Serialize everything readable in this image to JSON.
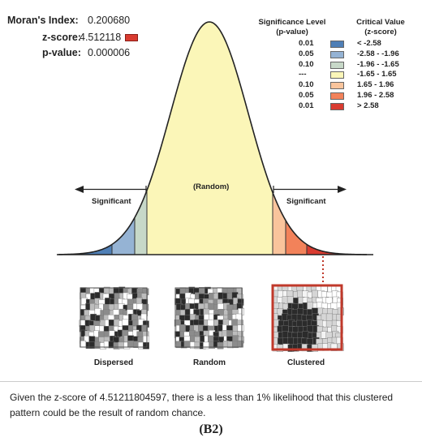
{
  "stats": {
    "morans_label": "Moran's Index:",
    "morans_value": "0.200680",
    "z_label": "z-score:",
    "z_value": "4.512118",
    "p_label": "p-value:",
    "p_value": "0.000006"
  },
  "legend": {
    "sig_header_1": "Significance Level",
    "sig_header_2": "(p-value)",
    "crit_header_1": "Critical Value",
    "crit_header_2": "(z-score)",
    "rows": [
      {
        "p": "0.01",
        "z": "< -2.58",
        "color": "#4f7fb6"
      },
      {
        "p": "0.05",
        "z": "-2.58 - -1.96",
        "color": "#95b3d4"
      },
      {
        "p": "0.10",
        "z": "-1.96 - -1.65",
        "color": "#c7d8c8"
      },
      {
        "p": "---",
        "z": "-1.65 - 1.65",
        "color": "#fbf6b8"
      },
      {
        "p": "0.10",
        "z": "1.65 - 1.96",
        "color": "#f9c49c"
      },
      {
        "p": "0.05",
        "z": "1.96 - 2.58",
        "color": "#f2825a"
      },
      {
        "p": "0.01",
        "z": "> 2.58",
        "color": "#d93b30"
      }
    ]
  },
  "curve": {
    "random_label": "(Random)",
    "significant_left": "Significant",
    "significant_right": "Significant"
  },
  "panels": {
    "dispersed": "Dispersed",
    "random": "Random",
    "clustered": "Clustered"
  },
  "caption": "Given the z-score of 4.51211804597, there is a less than 1% likelihood that this clustered pattern could be the result of random chance.",
  "figure_label": "(B2)"
}
